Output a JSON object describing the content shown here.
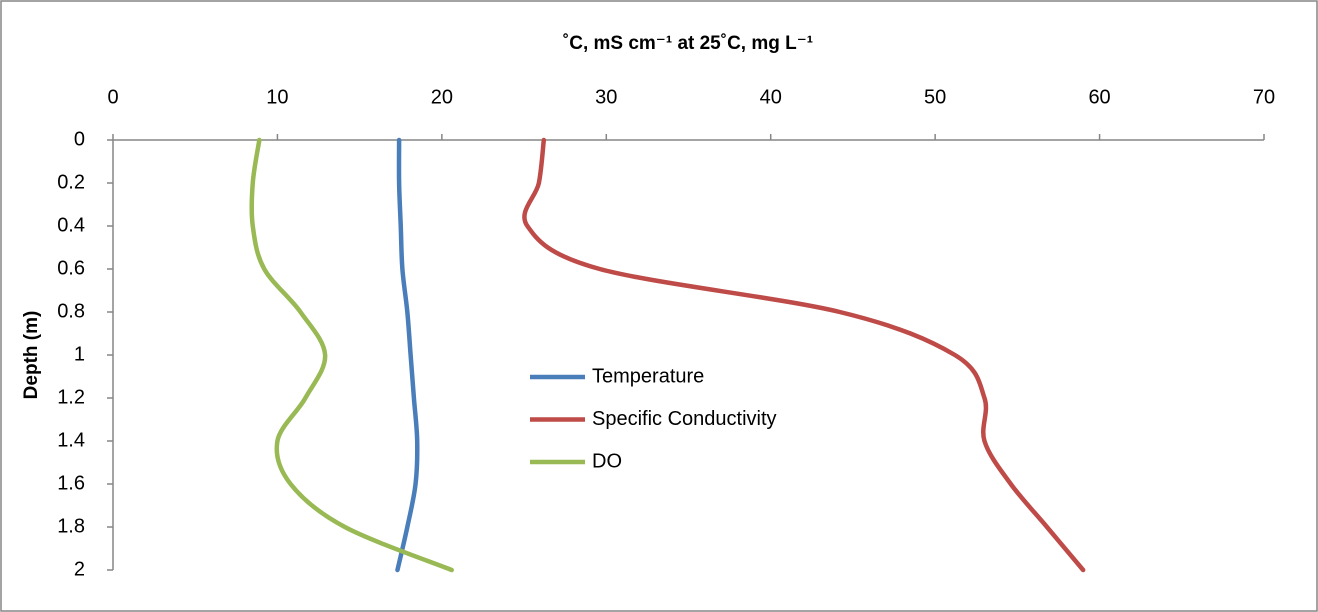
{
  "chart_data": {
    "type": "line",
    "x_label": "˚C, mS cm⁻¹ at 25˚C, mg L⁻¹",
    "y_label": "Depth (m)",
    "y": [
      0,
      0.2,
      0.4,
      0.6,
      0.8,
      1,
      1.2,
      1.4,
      1.6,
      1.8,
      2
    ],
    "series": [
      {
        "name": "Temperature",
        "color": "#4a7ebb",
        "values": [
          17.4,
          17.4,
          17.5,
          17.6,
          17.9,
          18.1,
          18.3,
          18.5,
          18.4,
          17.9,
          17.3
        ]
      },
      {
        "name": "Specific Conductivity",
        "color": "#be4b48",
        "values": [
          26.2,
          25.9,
          25.2,
          29.6,
          44.2,
          51.2,
          53.0,
          53.0,
          54.6,
          56.8,
          59.0
        ]
      },
      {
        "name": "DO",
        "color": "#98b954",
        "values": [
          8.9,
          8.5,
          8.5,
          9.2,
          11.4,
          12.9,
          11.7,
          10.0,
          10.8,
          14.1,
          20.6
        ]
      }
    ],
    "xlim": [
      0,
      70
    ],
    "xticks": [
      0,
      10,
      20,
      30,
      40,
      50,
      60,
      70
    ],
    "ylim": [
      0,
      2
    ],
    "yticks": [
      0,
      0.2,
      0.4,
      0.6,
      0.8,
      1,
      1.2,
      1.4,
      1.6,
      1.8,
      2
    ],
    "y_inverted": true,
    "legend": "center"
  }
}
